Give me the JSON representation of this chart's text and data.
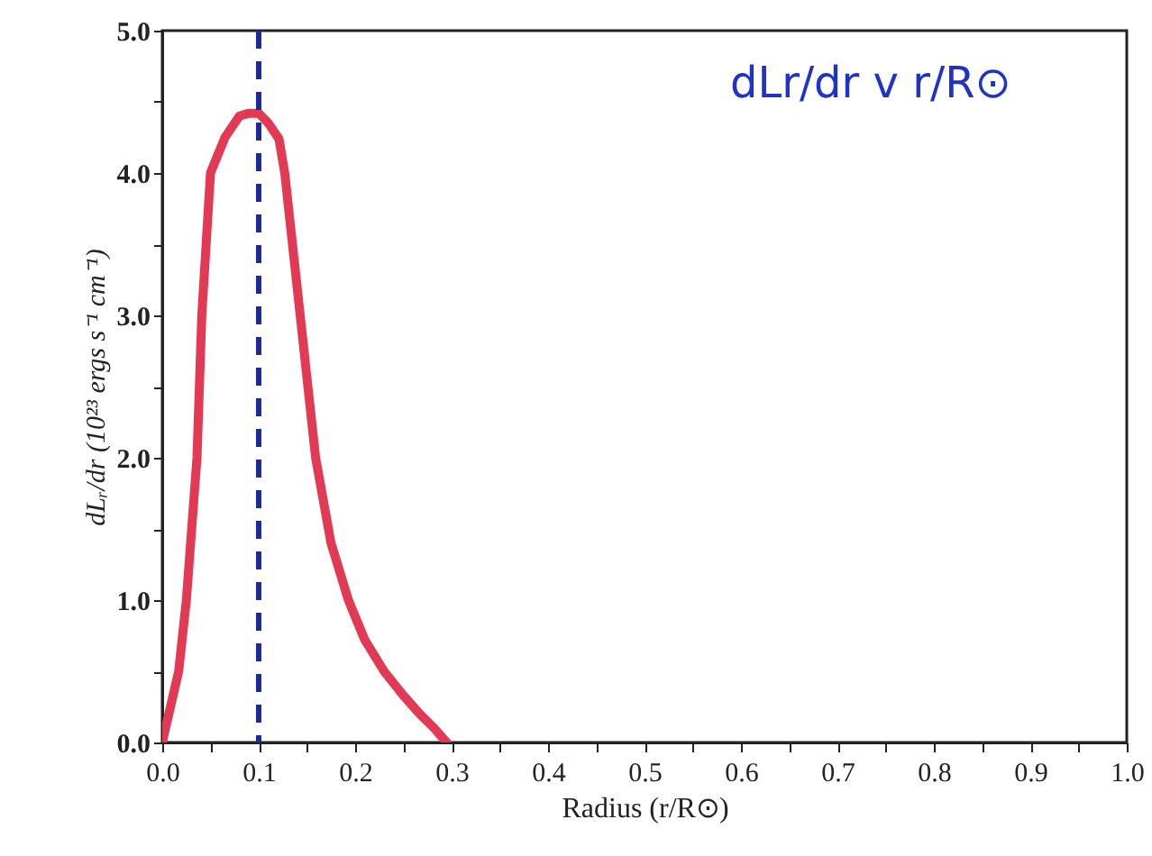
{
  "chart_data": {
    "type": "line",
    "xlabel": "Radius (r/R⊙)",
    "ylabel": "dLᵣ/dr (10²³ ergs s⁻¹ cm⁻¹)",
    "x": [
      0,
      0.017,
      0.025,
      0.036,
      0.041,
      0.05,
      0.065,
      0.08,
      0.09,
      0.1,
      0.11,
      0.121,
      0.127,
      0.143,
      0.159,
      0.175,
      0.193,
      0.21,
      0.23,
      0.25,
      0.267,
      0.282,
      0.295
    ],
    "series": [
      {
        "color": "#e23a55",
        "values": [
          0,
          0.5,
          1.0,
          2.0,
          3.0,
          4.0,
          4.25,
          4.4,
          4.42,
          4.42,
          4.35,
          4.24,
          4.0,
          3.0,
          2.0,
          1.4,
          1.0,
          0.72,
          0.5,
          0.33,
          0.2,
          0.1,
          0
        ]
      }
    ],
    "xlim": [
      0,
      1.0
    ],
    "ylim": [
      0,
      5.0
    ],
    "xticks": [
      {
        "value": 0,
        "label": "0.0"
      },
      {
        "value": 0.05,
        "label": null
      },
      0.1,
      {
        "value": 0.15,
        "label": null
      },
      0.2,
      {
        "value": 0.25,
        "label": null
      },
      0.3,
      {
        "value": 0.35,
        "label": null
      },
      0.4,
      {
        "value": 0.45,
        "label": null
      },
      0.5,
      {
        "value": 0.55,
        "label": null
      },
      0.6,
      {
        "value": 0.65,
        "label": null
      },
      0.7,
      {
        "value": 0.75,
        "label": null
      },
      0.8,
      {
        "value": 0.85,
        "label": null
      },
      0.9,
      {
        "value": 0.95,
        "label": null
      },
      {
        "value": 1,
        "label": "1.0"
      }
    ],
    "yticks": [
      {
        "value": 0,
        "label": "0.0"
      },
      {
        "value": 0.5,
        "label": null
      },
      {
        "value": 1,
        "label": "1.0"
      },
      {
        "value": 1.5,
        "label": null
      },
      {
        "value": 2,
        "label": "2.0"
      },
      {
        "value": 2.5,
        "label": null
      },
      {
        "value": 3,
        "label": "3.0"
      },
      {
        "value": 3.5,
        "label": null
      },
      {
        "value": 4,
        "label": "4.0"
      },
      {
        "value": 4.5,
        "label": null
      },
      {
        "value": 5,
        "label": "5.0"
      }
    ],
    "ref_lines": [
      {
        "axis": "x",
        "value": 0.1,
        "color": "#1c2a9a",
        "line_style": "dashed"
      }
    ],
    "annotations": [
      "dLr/dr v r/R⊙"
    ],
    "grid": false
  }
}
